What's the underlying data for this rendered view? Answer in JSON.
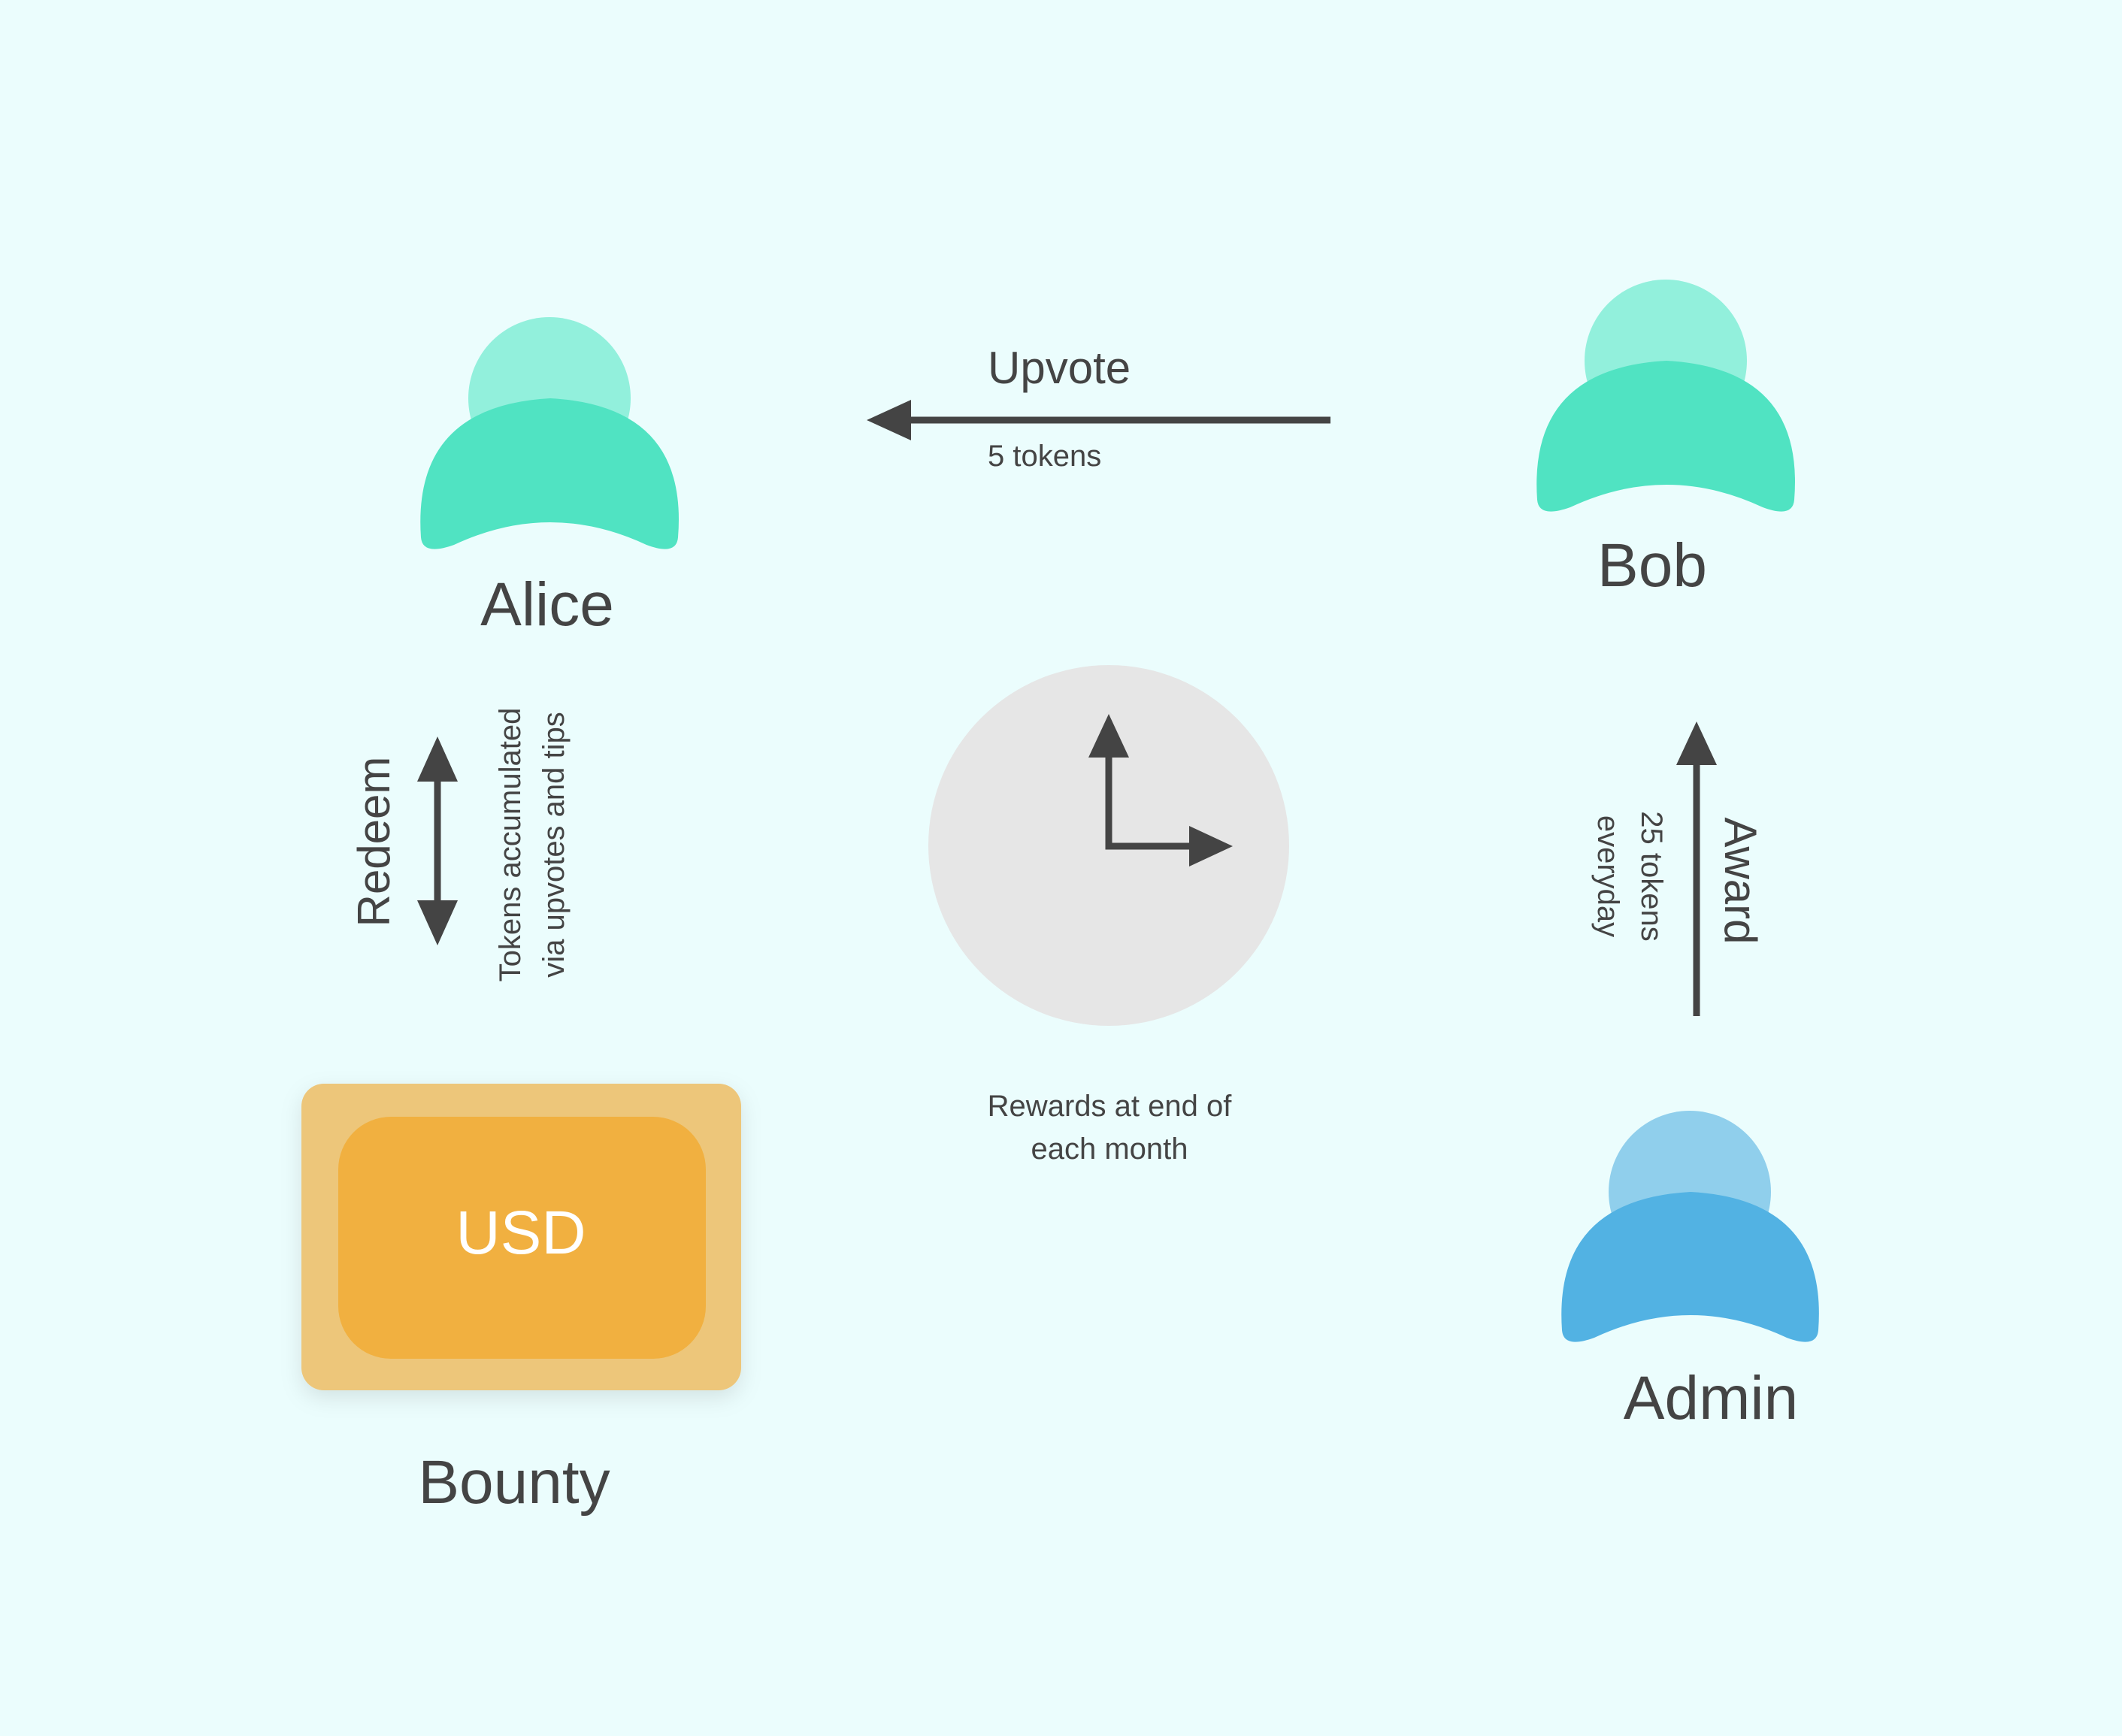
{
  "actors": {
    "alice": {
      "label": "Alice"
    },
    "bob": {
      "label": "Bob"
    },
    "admin": {
      "label": "Admin"
    }
  },
  "bounty": {
    "label": "Bounty",
    "currency": "USD"
  },
  "flows": {
    "upvote": {
      "label": "Upvote",
      "detail": "5 tokens"
    },
    "award": {
      "label": "Award",
      "detail_line1": "25 tokens",
      "detail_line2": "everyday"
    },
    "redeem": {
      "label": "Redeem",
      "detail_line1": "Tokens accumulated",
      "detail_line2": "via upvotes and tips"
    }
  },
  "clock": {
    "caption_line1": "Rewards at end of",
    "caption_line2": "each month"
  },
  "colors": {
    "background": "#ebfdfd",
    "user_head": "#92f0dc",
    "user_body": "#50e3c2",
    "admin_head": "#90cfec",
    "admin_body": "#52b2e3",
    "bounty_outer": "#edc67a",
    "bounty_inner": "#f1b03f",
    "clock_face": "#e6e6e6",
    "ink": "#444444"
  }
}
